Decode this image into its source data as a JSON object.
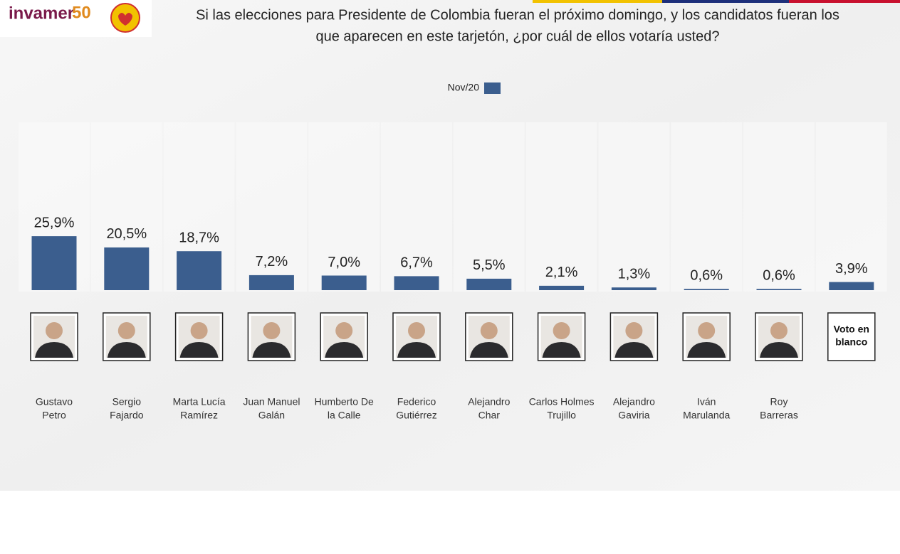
{
  "logo": {
    "brand": "invamer",
    "number": "50"
  },
  "chart_data": {
    "type": "bar",
    "title": [
      "Si las elecciones para Presidente de Colombia fueran el próximo domingo, y los candidatos fueran los",
      "que aparecen en este tarjetón, ¿por cuál de ellos votaría usted?"
    ],
    "categories": [
      [
        "Gustavo",
        "Petro"
      ],
      [
        "Sergio",
        "Fajardo"
      ],
      [
        "Marta Lucía",
        "Ramírez"
      ],
      [
        "Juan Manuel",
        "Galán"
      ],
      [
        "Humberto De",
        "la Calle"
      ],
      [
        "Federico",
        "Gutiérrez"
      ],
      [
        "Alejandro",
        "Char"
      ],
      [
        "Carlos Holmes",
        "Trujillo"
      ],
      [
        "Alejandro",
        "Gaviria"
      ],
      [
        "Iván",
        "Marulanda"
      ],
      [
        "Roy",
        "Barreras"
      ],
      [
        "Voto en",
        "blanco"
      ]
    ],
    "series": [
      {
        "name": "Nov/20",
        "color": "#3b5e8e",
        "values": [
          25.9,
          20.5,
          18.7,
          7.2,
          7.0,
          6.7,
          5.5,
          2.1,
          1.3,
          0.6,
          0.6,
          3.9
        ],
        "value_labels": [
          "25,9%",
          "20,5%",
          "18,7%",
          "7,2%",
          "7,0%",
          "6,7%",
          "5,5%",
          "2,1%",
          "1,3%",
          "0,6%",
          "0,6%",
          "3,9%"
        ]
      }
    ]
  }
}
